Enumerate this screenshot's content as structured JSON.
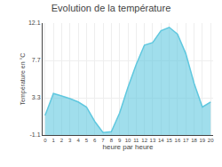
{
  "chart_data": {
    "type": "area",
    "title": "Evolution de la température",
    "xlabel": "heure par heure",
    "ylabel": "Température en °C",
    "x": [
      0,
      1,
      2,
      3,
      4,
      5,
      6,
      7,
      8,
      9,
      10,
      11,
      12,
      13,
      14,
      15,
      16,
      17,
      18,
      19,
      20
    ],
    "values": [
      1.2,
      3.8,
      3.5,
      3.2,
      2.8,
      2.2,
      0.5,
      -0.8,
      -0.7,
      1.5,
      4.5,
      7.2,
      9.5,
      9.8,
      11.2,
      11.6,
      10.8,
      8.5,
      5.0,
      2.2,
      2.8
    ],
    "color": "#60c8df",
    "xlim": [
      -0.3,
      20.3
    ],
    "xticks": [
      0,
      1,
      2,
      3,
      4,
      5,
      6,
      7,
      8,
      9,
      10,
      11,
      12,
      13,
      14,
      15,
      16,
      17,
      18,
      19,
      20
    ],
    "ylim": [
      -1.1,
      12.1
    ],
    "yticks": [
      -1.1,
      3.3,
      7.7,
      12.1
    ],
    "grid": true
  }
}
